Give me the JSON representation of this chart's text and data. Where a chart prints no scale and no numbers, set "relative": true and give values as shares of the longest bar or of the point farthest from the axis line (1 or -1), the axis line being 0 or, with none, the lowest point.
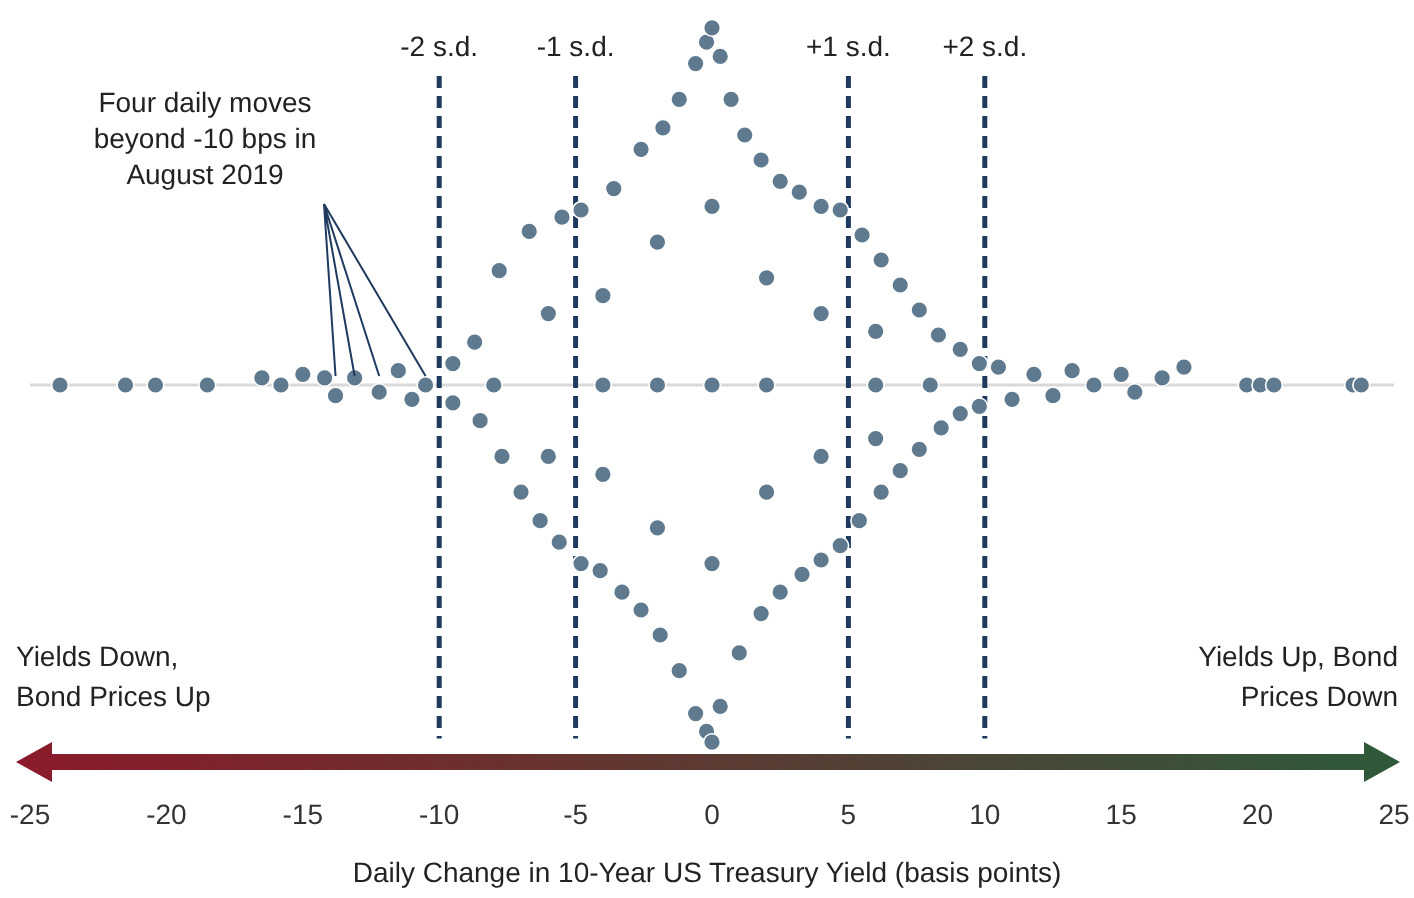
{
  "chart_data": {
    "type": "scatter",
    "relative": true,
    "color": "#5f7a8f",
    "marker": "circle",
    "xlabel": "Daily Change in 10-Year US Treasury Yield (basis points)",
    "xlim": [
      -25,
      25
    ],
    "xticks": [
      -25,
      -20,
      -15,
      -10,
      -5,
      0,
      5,
      10,
      15,
      20,
      25
    ],
    "ref_lines": [
      {
        "axis": "x",
        "value": -10,
        "label": "-2 s.d.",
        "color": "#1f3a5f",
        "line_style": "dashed"
      },
      {
        "axis": "x",
        "value": -5,
        "label": "-1 s.d.",
        "color": "#1f3a5f",
        "line_style": "dashed"
      },
      {
        "axis": "x",
        "value": 5,
        "label": "+1 s.d.",
        "color": "#1f3a5f",
        "line_style": "dashed"
      },
      {
        "axis": "x",
        "value": 10,
        "label": "+2 s.d.",
        "color": "#1f3a5f",
        "line_style": "dashed"
      }
    ],
    "annotations": [
      "Four daily moves beyond -10 bps in August 2019",
      "Yields Down, Bond Prices Up",
      "Yields Up, Bond Prices Down"
    ],
    "x": [
      -23.9,
      -21.5,
      -20.4,
      -18.5,
      19.6,
      20.1,
      20.6,
      23.5,
      23.8,
      -16.5,
      -15.8,
      -15,
      -14.2,
      -13.8,
      -13.1,
      -12.2,
      -11.5,
      -10.5,
      -11,
      10.5,
      11,
      11.8,
      12.5,
      13.2,
      14,
      15,
      15.5,
      16.5,
      17.3,
      -9.5,
      -8.7,
      -7.8,
      -6.7,
      -5.5,
      -4.8,
      -3.6,
      -2.6,
      -1.8,
      -1.2,
      -0.6,
      -0.2,
      0,
      0.3,
      0.7,
      1.2,
      1.8,
      2.5,
      3.2,
      4,
      4.7,
      5.5,
      6.2,
      6.9,
      7.6,
      8.3,
      9.1,
      9.8,
      -9.5,
      -8.5,
      -7.7,
      -7,
      -6.3,
      -5.6,
      -4.8,
      -4.1,
      -3.3,
      -2.6,
      -1.9,
      -1.2,
      -0.6,
      -0.2,
      0,
      0.3,
      1,
      1.8,
      2.5,
      3.3,
      4,
      4.7,
      5.4,
      6.2,
      6.9,
      7.6,
      8.4,
      9.1,
      9.8,
      -8,
      -6,
      -6,
      -4,
      -4,
      -4,
      -2,
      -2,
      -2,
      0,
      0,
      0,
      2,
      2,
      2,
      4,
      4,
      6,
      6,
      6,
      8
    ],
    "values": [
      0,
      0,
      0,
      0,
      0,
      0,
      0,
      0,
      0,
      0.02,
      0,
      0.03,
      0.02,
      -0.03,
      0.02,
      -0.02,
      0.04,
      0,
      -0.04,
      0.05,
      -0.04,
      0.03,
      -0.03,
      0.04,
      0,
      0.03,
      -0.02,
      0.02,
      0.05,
      0.06,
      0.12,
      0.32,
      0.43,
      0.47,
      0.49,
      0.55,
      0.66,
      0.72,
      0.8,
      0.9,
      0.96,
      1,
      0.92,
      0.8,
      0.7,
      0.63,
      0.57,
      0.54,
      0.5,
      0.49,
      0.42,
      0.35,
      0.28,
      0.21,
      0.14,
      0.1,
      0.06,
      -0.05,
      -0.1,
      -0.2,
      -0.3,
      -0.38,
      -0.44,
      -0.5,
      -0.52,
      -0.58,
      -0.63,
      -0.7,
      -0.8,
      -0.92,
      -0.97,
      -1,
      -0.9,
      -0.75,
      -0.64,
      -0.58,
      -0.53,
      -0.49,
      -0.45,
      -0.38,
      -0.3,
      -0.24,
      -0.18,
      -0.12,
      -0.08,
      -0.06,
      0,
      0.2,
      -0.2,
      0.25,
      -0.25,
      0,
      0.4,
      -0.4,
      0,
      0.5,
      -0.5,
      0,
      0.3,
      -0.3,
      0,
      0.2,
      -0.2,
      0,
      0.15,
      -0.15,
      0
    ]
  }
}
